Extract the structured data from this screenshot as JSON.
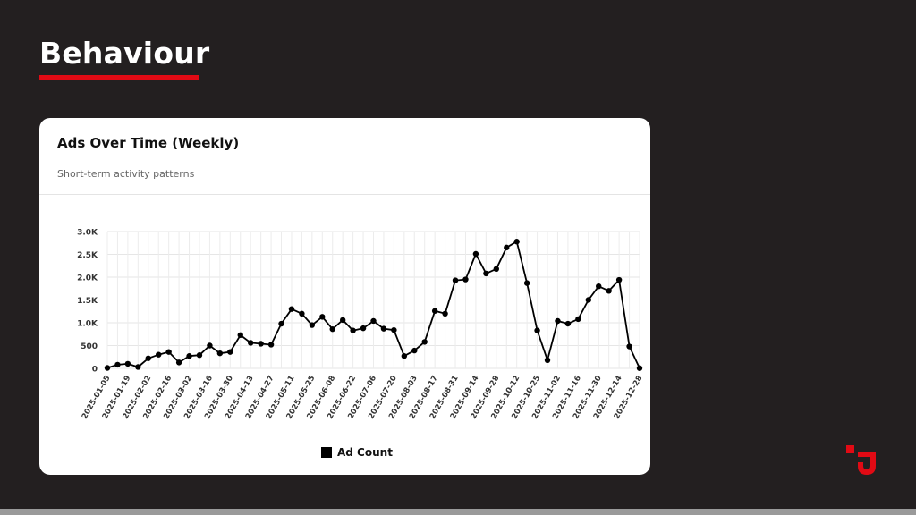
{
  "slide": {
    "title": "Behaviour"
  },
  "colors": {
    "accent": "#e10a14",
    "background": "#231f20",
    "line": "#000000"
  },
  "card": {
    "title": "Ads Over Time (Weekly)",
    "subtitle": "Short-term activity patterns"
  },
  "brand": {
    "logo_icon": "brand-logo-icon"
  },
  "chart_data": {
    "type": "line",
    "title": "Ads Over Time (Weekly)",
    "subtitle": "Short-term activity patterns",
    "xlabel": "",
    "ylabel": "",
    "ylim": [
      0,
      3000
    ],
    "yticks": [
      0,
      500,
      1000,
      1500,
      2000,
      2500,
      3000
    ],
    "ytick_labels": [
      "0",
      "500",
      "1.0K",
      "1.5K",
      "2.0K",
      "2.5K",
      "3.0K"
    ],
    "grid": true,
    "legend": "bottom-center",
    "x": [
      "2025-01-05",
      "2025-01-12",
      "2025-01-19",
      "2025-01-26",
      "2025-02-02",
      "2025-02-09",
      "2025-02-16",
      "2025-02-23",
      "2025-03-02",
      "2025-03-09",
      "2025-03-16",
      "2025-03-23",
      "2025-03-30",
      "2025-04-06",
      "2025-04-13",
      "2025-04-20",
      "2025-04-27",
      "2025-05-04",
      "2025-05-11",
      "2025-05-18",
      "2025-05-25",
      "2025-06-01",
      "2025-06-08",
      "2025-06-15",
      "2025-06-22",
      "2025-06-29",
      "2025-07-06",
      "2025-07-13",
      "2025-07-20",
      "2025-07-27",
      "2025-08-03",
      "2025-08-10",
      "2025-08-17",
      "2025-08-24",
      "2025-08-31",
      "2025-09-07",
      "2025-09-14",
      "2025-09-21",
      "2025-09-28",
      "2025-10-05",
      "2025-10-12",
      "2025-10-19",
      "2025-10-25",
      "2025-10-26",
      "2025-11-02",
      "2025-11-09",
      "2025-11-16",
      "2025-11-23",
      "2025-11-30",
      "2025-12-07",
      "2025-12-14",
      "2025-12-21",
      "2025-12-28"
    ],
    "xtick_labels": [
      "2025-01-05",
      "2025-01-19",
      "2025-02-02",
      "2025-02-16",
      "2025-03-02",
      "2025-03-16",
      "2025-03-30",
      "2025-04-13",
      "2025-04-27",
      "2025-05-11",
      "2025-05-25",
      "2025-06-08",
      "2025-06-22",
      "2025-07-06",
      "2025-07-20",
      "2025-08-03",
      "2025-08-17",
      "2025-08-31",
      "2025-09-14",
      "2025-09-28",
      "2025-10-12",
      "2025-10-25",
      "2025-11-02",
      "2025-11-16",
      "2025-11-30",
      "2025-12-14",
      "2025-12-28"
    ],
    "series": [
      {
        "name": "Ad Count",
        "color": "#000000",
        "values": [
          10,
          80,
          100,
          30,
          220,
          300,
          360,
          130,
          270,
          290,
          500,
          330,
          360,
          730,
          560,
          540,
          520,
          980,
          1300,
          1200,
          950,
          1130,
          860,
          1060,
          830,
          880,
          1040,
          870,
          840,
          270,
          390,
          580,
          1260,
          1200,
          1930,
          1950,
          2510,
          2080,
          2180,
          2650,
          2780,
          1870,
          830,
          180,
          1040,
          980,
          1080,
          1500,
          1800,
          1700,
          1940,
          480,
          5
        ]
      }
    ]
  }
}
